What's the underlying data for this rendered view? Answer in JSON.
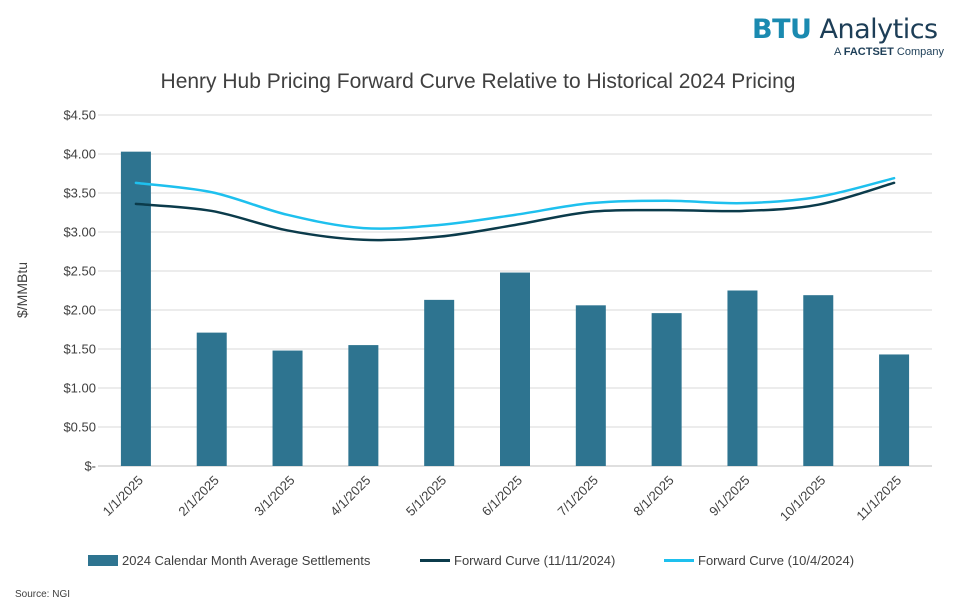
{
  "logo": {
    "brand_bold": "BTU",
    "brand_rest": "Analytics",
    "sub_prefix": "A",
    "sub_bold": "FACTSET",
    "sub_suffix": "Company"
  },
  "source": "Source: NGI",
  "colors": {
    "bars": "#2e7490",
    "fwd_nov": "#0b3b4b",
    "fwd_oct": "#1ec0ee",
    "grid": "#d9d9d9",
    "text": "#404040"
  },
  "chart_data": {
    "type": "bar",
    "title": "Henry Hub Pricing Forward Curve Relative to Historical 2024 Pricing",
    "xlabel": "",
    "ylabel": "$/MMBtu",
    "ylim": [
      0,
      4.5
    ],
    "yticks": [
      0,
      0.5,
      1.0,
      1.5,
      2.0,
      2.5,
      3.0,
      3.5,
      4.0,
      4.5
    ],
    "ytick_labels": [
      "$-",
      "$0.50",
      "$1.00",
      "$1.50",
      "$2.00",
      "$2.50",
      "$3.00",
      "$3.50",
      "$4.00",
      "$4.50"
    ],
    "categories": [
      "1/1/2025",
      "2/1/2025",
      "3/1/2025",
      "4/1/2025",
      "5/1/2025",
      "6/1/2025",
      "7/1/2025",
      "8/1/2025",
      "9/1/2025",
      "10/1/2025",
      "11/1/2025"
    ],
    "grid": true,
    "legend_position": "bottom",
    "series": [
      {
        "name": "2024 Calendar Month Average Settlements",
        "kind": "bar",
        "color": "#2e7490",
        "values": [
          4.03,
          1.71,
          1.48,
          1.55,
          2.13,
          2.48,
          2.06,
          1.96,
          2.25,
          2.19,
          1.43
        ]
      },
      {
        "name": "Forward Curve (11/11/2024)",
        "kind": "line",
        "color": "#0b3b4b",
        "values": [
          3.36,
          3.27,
          3.02,
          2.9,
          2.94,
          3.09,
          3.26,
          3.28,
          3.27,
          3.35,
          3.63
        ]
      },
      {
        "name": "Forward Curve (10/4/2024)",
        "kind": "line",
        "color": "#1ec0ee",
        "values": [
          3.63,
          3.51,
          3.22,
          3.05,
          3.09,
          3.22,
          3.37,
          3.4,
          3.37,
          3.45,
          3.69
        ]
      }
    ]
  }
}
